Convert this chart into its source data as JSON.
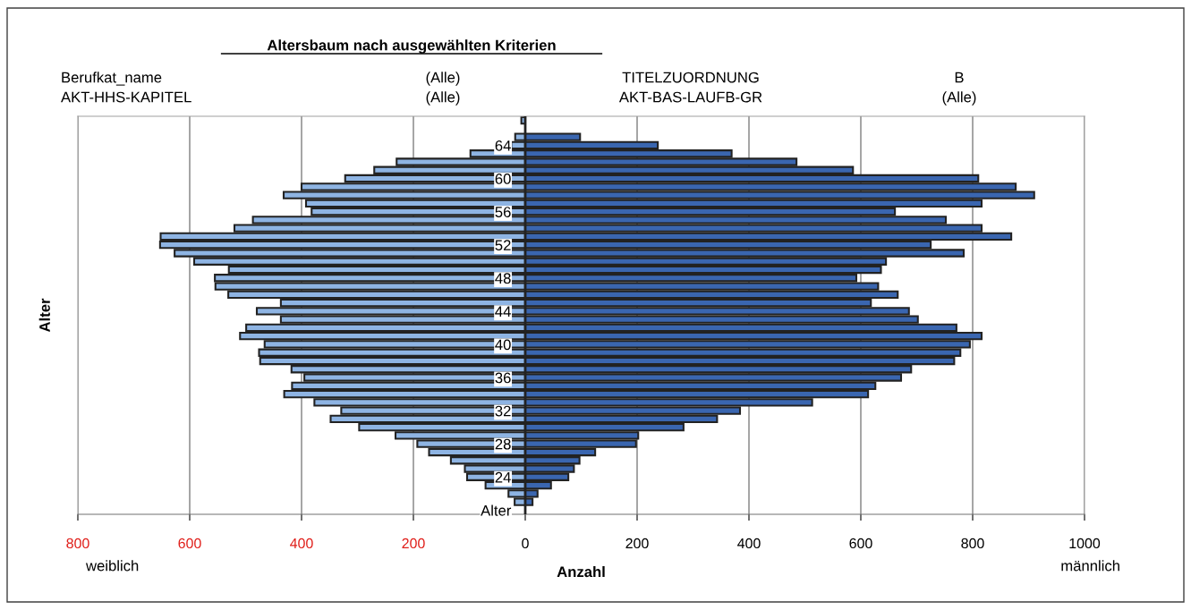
{
  "chart_data": {
    "type": "bar",
    "orientation": "horizontal",
    "title": "Altersbaum nach ausgewählten Kriterien",
    "xlabel": "Anzahl",
    "ylabel": "Alter",
    "categories": [
      null,
      null,
      null,
      "64",
      null,
      null,
      null,
      "60",
      null,
      null,
      null,
      "56",
      null,
      null,
      null,
      "52",
      null,
      null,
      null,
      "48",
      null,
      null,
      null,
      "44",
      null,
      null,
      null,
      "40",
      null,
      null,
      null,
      "36",
      null,
      null,
      null,
      "32",
      null,
      null,
      null,
      "28",
      null,
      null,
      null,
      "24",
      null,
      null,
      null,
      "Alter"
    ],
    "series": [
      {
        "color": "#8eb4e3",
        "values": [
          -7,
          null,
          -18,
          -25,
          -98,
          -230,
          -270,
          -322,
          -400,
          -432,
          -392,
          -382,
          -487,
          -520,
          -652,
          -653,
          -627,
          -592,
          -530,
          -555,
          -554,
          -531,
          -437,
          -480,
          -437,
          -499,
          -510,
          -466,
          -476,
          -474,
          -418,
          -395,
          -417,
          -431,
          -377,
          -329,
          -348,
          -297,
          -232,
          -193,
          -172,
          -133,
          -108,
          -104,
          -71,
          -30,
          -19,
          null
        ]
      },
      {
        "color": "#3a66b0",
        "values": [
          null,
          null,
          98,
          237,
          369,
          485,
          586,
          810,
          877,
          910,
          816,
          661,
          752,
          816,
          869,
          725,
          784,
          645,
          636,
          592,
          631,
          666,
          618,
          686,
          702,
          771,
          816,
          795,
          778,
          767,
          690,
          672,
          626,
          613,
          513,
          384,
          343,
          283,
          202,
          198,
          125,
          97,
          87,
          77,
          46,
          22,
          13,
          null
        ]
      }
    ],
    "xlim": [
      -800,
      1000
    ],
    "xticks": [
      {
        "value": -800,
        "label": "800"
      },
      {
        "value": -600,
        "label": "600"
      },
      {
        "value": -400,
        "label": "400"
      },
      {
        "value": -200,
        "label": "200"
      },
      0,
      200,
      400,
      600,
      800,
      1000
    ],
    "grid": "x",
    "stacked": true,
    "annotations": [
      "Berufkat_name",
      "(Alle)",
      "TITELZUORDNUNG",
      "B",
      "AKT-HHS-KAPITEL",
      "(Alle)",
      "AKT-BAS-LAUFB-GR",
      "(Alle)",
      "weiblich",
      "männlich"
    ]
  }
}
